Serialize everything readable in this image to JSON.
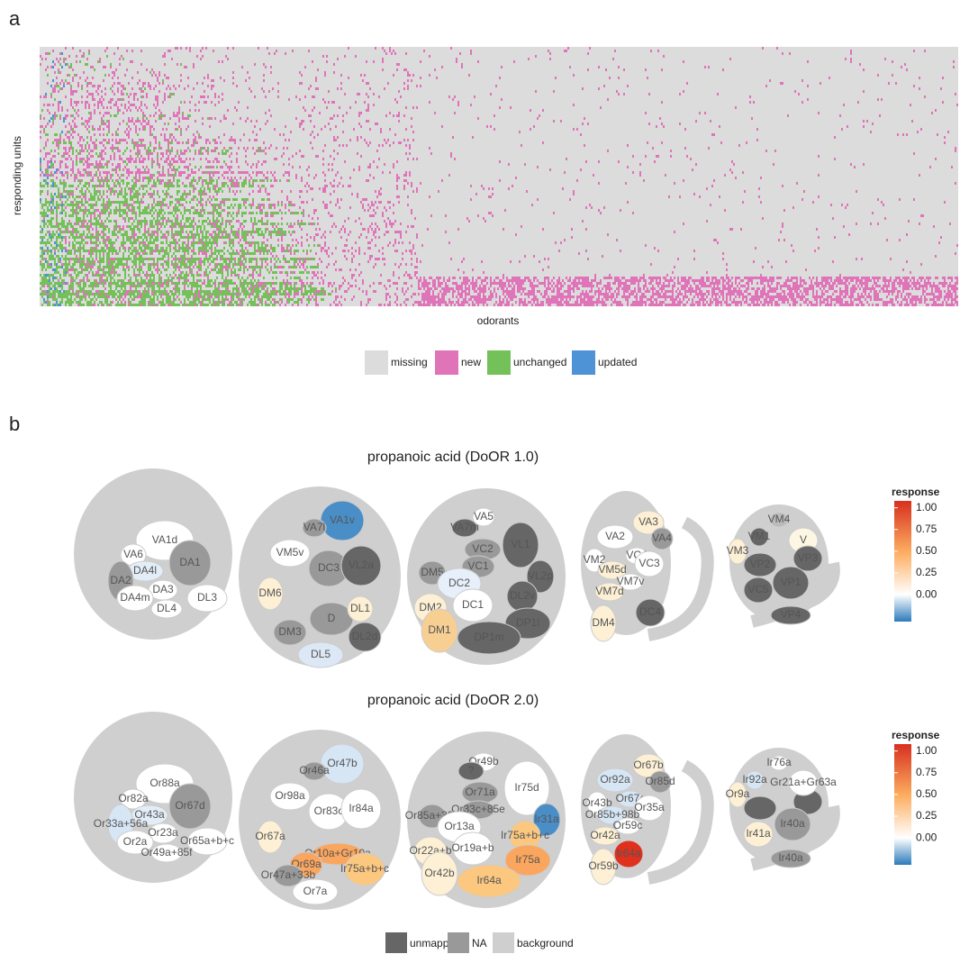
{
  "panel_a": {
    "label": "a",
    "y_axis_label": "responding units",
    "x_axis_label": "odorants",
    "legend": [
      {
        "label": "missing",
        "color": "#dcdcdc"
      },
      {
        "label": "new",
        "color": "#df74b8"
      },
      {
        "label": "unchanged",
        "color": "#74c15a"
      },
      {
        "label": "updated",
        "color": "#4d93d6"
      }
    ]
  },
  "panel_b": {
    "label": "b",
    "maps": [
      {
        "title": "propanoic acid (DoOR 1.0)",
        "glomeruli": [
          [
            {
              "label": "VA1d",
              "color": "#ffffff"
            },
            {
              "label": "VA6",
              "color": "#ffffff"
            },
            {
              "label": "DA4l",
              "color": "#e3edf8"
            },
            {
              "label": "DA1",
              "color": "#999999"
            },
            {
              "label": "DA2",
              "color": "#999999"
            },
            {
              "label": "DA3",
              "color": "#ffffff"
            },
            {
              "label": "DA4m",
              "color": "#ffffff"
            },
            {
              "label": "DL4",
              "color": "#ffffff"
            },
            {
              "label": "DL3",
              "color": "#ffffff"
            }
          ],
          [
            {
              "label": "VA1v",
              "color": "#4a8ec8"
            },
            {
              "label": "VA7l",
              "color": "#999999"
            },
            {
              "label": "VM5v",
              "color": "#ffffff"
            },
            {
              "label": "DC3",
              "color": "#999999"
            },
            {
              "label": "VL2a",
              "color": "#666666"
            },
            {
              "label": "DM6",
              "color": "#fdf0d5"
            },
            {
              "label": "D",
              "color": "#999999"
            },
            {
              "label": "DL1",
              "color": "#fdf0d5"
            },
            {
              "label": "DL2d",
              "color": "#666666"
            },
            {
              "label": "DM3",
              "color": "#999999"
            },
            {
              "label": "DL5",
              "color": "#dce8f5"
            }
          ],
          [
            {
              "label": "VA5",
              "color": "#ffffff"
            },
            {
              "label": "VA7m",
              "color": "#666666"
            },
            {
              "label": "VC2",
              "color": "#999999"
            },
            {
              "label": "VL1",
              "color": "#666666"
            },
            {
              "label": "VC1",
              "color": "#999999"
            },
            {
              "label": "DM5",
              "color": "#999999"
            },
            {
              "label": "DC2",
              "color": "#e7f0fa"
            },
            {
              "label": "VL2p",
              "color": "#666666"
            },
            {
              "label": "DC1",
              "color": "#ffffff"
            },
            {
              "label": "DL2v",
              "color": "#666666"
            },
            {
              "label": "DM2",
              "color": "#fdf0d5"
            },
            {
              "label": "DP1l",
              "color": "#666666"
            },
            {
              "label": "DM1",
              "color": "#f7cf93"
            },
            {
              "label": "DP1m",
              "color": "#666666"
            }
          ],
          [
            {
              "label": "VA3",
              "color": "#fdf0d5"
            },
            {
              "label": "VA2",
              "color": "#ffffff"
            },
            {
              "label": "VA4",
              "color": "#999999"
            },
            {
              "label": "VC4",
              "color": "#ffffff"
            },
            {
              "label": "VM2",
              "color": "#ffffff"
            },
            {
              "label": "VM5d",
              "color": "#fdf0d5"
            },
            {
              "label": "VC3",
              "color": "#ffffff"
            },
            {
              "label": "VM7v",
              "color": "#ffffff"
            },
            {
              "label": "VM7d",
              "color": "#fdf0d5"
            },
            {
              "label": "DC4",
              "color": "#666666"
            },
            {
              "label": "DM4",
              "color": "#fdf0d5"
            }
          ],
          [
            {
              "label": "VM4",
              "color": "#bbbbbb"
            },
            {
              "label": "VM1",
              "color": "#666666"
            },
            {
              "label": "V",
              "color": "#fdf6e3"
            },
            {
              "label": "VM3",
              "color": "#fdf0d5"
            },
            {
              "label": "VP2",
              "color": "#666666"
            },
            {
              "label": "VP3",
              "color": "#666666"
            },
            {
              "label": "VP1",
              "color": "#666666"
            },
            {
              "label": "VC5",
              "color": "#666666"
            },
            {
              "label": "VP4",
              "color": "#666666"
            }
          ]
        ],
        "colorbar": {
          "title": "response",
          "lim": [
            -0.31,
            1.08
          ],
          "colors": [
            "#2b7bba",
            "#ffffff",
            "#fdae61",
            "#d7301f"
          ],
          "ticks": [
            {
              "value": 1,
              "label": "1.00"
            },
            {
              "value": 0.75,
              "label": "0.75"
            },
            {
              "value": 0.5,
              "label": "0.50"
            },
            {
              "value": 0.25,
              "label": "0.25"
            },
            {
              "value": 0,
              "label": "0.00"
            }
          ]
        }
      },
      {
        "title": "propanoic acid (DoOR 2.0)",
        "glomeruli": [
          [
            {
              "label": "Or88a",
              "color": "#ffffff"
            },
            {
              "label": "Or82a",
              "color": "#ffffff"
            },
            {
              "label": "Or67d",
              "color": "#999999"
            },
            {
              "label": "Or43a",
              "color": "#e3edf8"
            },
            {
              "label": "Or33a+56a",
              "color": "#d6e6f5"
            },
            {
              "label": "Or23a",
              "color": "#ffffff"
            },
            {
              "label": "Or2a",
              "color": "#ffffff"
            },
            {
              "label": "Or65a+b+c",
              "color": "#ffffff"
            },
            {
              "label": "Or49a+85f",
              "color": "#ffffff"
            }
          ],
          [
            {
              "label": "Or47b",
              "color": "#d6e6f5"
            },
            {
              "label": "Or46a",
              "color": "#999999"
            },
            {
              "label": "Or98a",
              "color": "#ffffff"
            },
            {
              "label": "Or83c",
              "color": "#ffffff"
            },
            {
              "label": "Ir84a",
              "color": "#ffffff"
            },
            {
              "label": "Or67a",
              "color": "#fdf0d5"
            },
            {
              "label": "Or10a+Gr10a",
              "color": "#fba65e"
            },
            {
              "label": "Or69a",
              "color": "#fba65e"
            },
            {
              "label": "Ir75a+b+c",
              "color": "#fcc880"
            },
            {
              "label": "Or47a+33b",
              "color": "#999999"
            },
            {
              "label": "Or7a",
              "color": "#ffffff"
            }
          ],
          [
            {
              "label": "Or49b",
              "color": "#ffffff"
            },
            {
              "label": "?",
              "color": "#666666"
            },
            {
              "label": "Ir75d",
              "color": "#ffffff"
            },
            {
              "label": "Or71a",
              "color": "#999999"
            },
            {
              "label": "Or33c+85e",
              "color": "#999999"
            },
            {
              "label": "Or85a+33b",
              "color": "#999999"
            },
            {
              "label": "Or13a",
              "color": "#ffffff"
            },
            {
              "label": "Ir31a",
              "color": "#4a8ec8"
            },
            {
              "label": "Ir75a+b+c",
              "color": "#fcc880"
            },
            {
              "label": "Or22a+b",
              "color": "#fdf0d5"
            },
            {
              "label": "Or19a+b",
              "color": "#ffffff"
            },
            {
              "label": "Ir75a",
              "color": "#fba65e"
            },
            {
              "label": "Or42b",
              "color": "#fdf0d5"
            },
            {
              "label": "Ir64a",
              "color": "#fcc880"
            }
          ],
          [
            {
              "label": "Or67b",
              "color": "#fdf0d5"
            },
            {
              "label": "Or92a",
              "color": "#d6e6f5"
            },
            {
              "label": "Or85d",
              "color": "#999999"
            },
            {
              "label": "Or67c",
              "color": "#d6e6f5"
            },
            {
              "label": "Or35a",
              "color": "#ffffff"
            },
            {
              "label": "Or43b",
              "color": "#ffffff"
            },
            {
              "label": "Or85b+98b",
              "color": "#d6e6f5"
            },
            {
              "label": "Or59c",
              "color": "#ffffff"
            },
            {
              "label": "Or42a",
              "color": "#fdf0d5"
            },
            {
              "label": "Ir64a",
              "color": "#e0301e"
            },
            {
              "label": "Or59b",
              "color": "#fdf0d5"
            }
          ],
          [
            {
              "label": "Ir76a",
              "color": "#ffffff"
            },
            {
              "label": "Ir92a",
              "color": "#d6e6f5"
            },
            {
              "label": "Gr21a+Gr63a",
              "color": "#ffffff"
            },
            {
              "label": "Or9a",
              "color": "#fdf0d5"
            },
            {
              "label": "Ir40a",
              "color": "#999999"
            },
            {
              "label": "Ir41a",
              "color": "#fdf0d5"
            },
            {
              "label": "Ir40a",
              "color": "#999999"
            }
          ]
        ],
        "colorbar": {
          "title": "response",
          "lim": [
            -0.31,
            1.08
          ],
          "colors": [
            "#2b7bba",
            "#ffffff",
            "#fdae61",
            "#d7301f"
          ],
          "ticks": [
            {
              "value": 1,
              "label": "1.00"
            },
            {
              "value": 0.75,
              "label": "0.75"
            },
            {
              "value": 0.5,
              "label": "0.50"
            },
            {
              "value": 0.25,
              "label": "0.25"
            },
            {
              "value": 0,
              "label": "0.00"
            }
          ]
        }
      }
    ],
    "legend": [
      {
        "label": "unmapped",
        "color": "#666666"
      },
      {
        "label": "NA",
        "color": "#999999"
      },
      {
        "label": "background",
        "color": "#cfcfcf"
      }
    ]
  }
}
